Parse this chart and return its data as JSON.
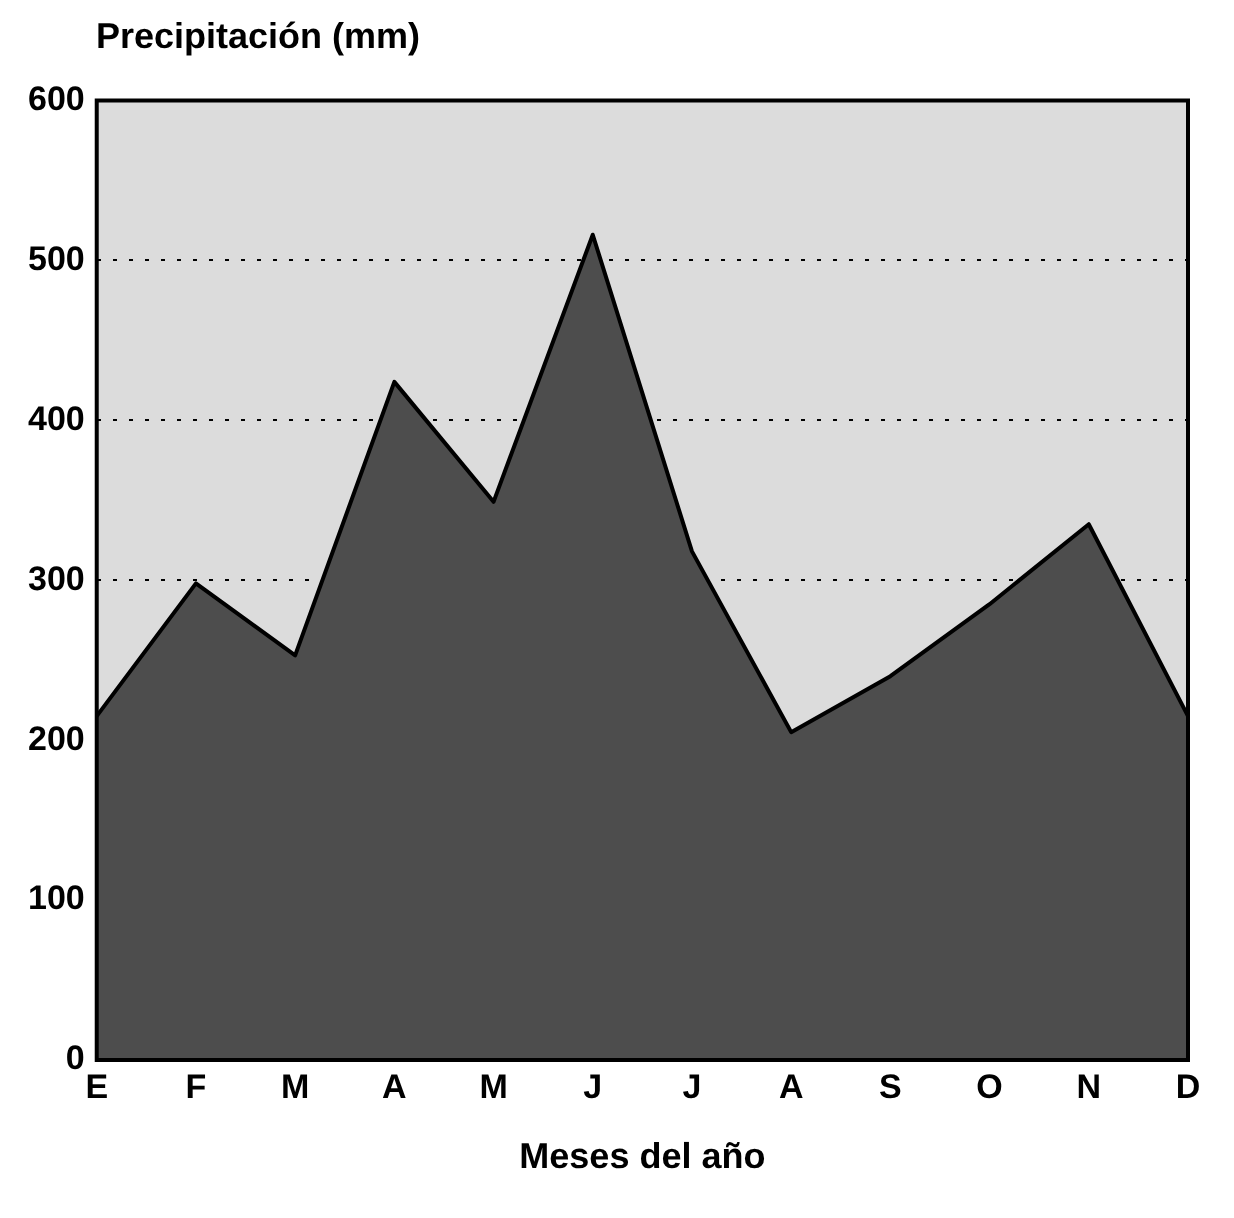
{
  "chart_data": {
    "type": "area",
    "ylabel": "Precipitación (mm)",
    "xlabel": "Meses del año",
    "categories": [
      "E",
      "F",
      "M",
      "A",
      "M",
      "J",
      "J",
      "A",
      "S",
      "O",
      "N",
      "D"
    ],
    "series": [
      {
        "color": "#4d4d4d",
        "values": [
          215,
          298,
          253,
          424,
          349,
          516,
          318,
          205,
          240,
          285,
          335,
          215
        ]
      }
    ],
    "ylim": [
      0,
      600
    ],
    "yticks": [
      0,
      100,
      200,
      300,
      400,
      500,
      600
    ],
    "grid": "y",
    "legend": false,
    "line_style": "solid",
    "marker": "none"
  }
}
